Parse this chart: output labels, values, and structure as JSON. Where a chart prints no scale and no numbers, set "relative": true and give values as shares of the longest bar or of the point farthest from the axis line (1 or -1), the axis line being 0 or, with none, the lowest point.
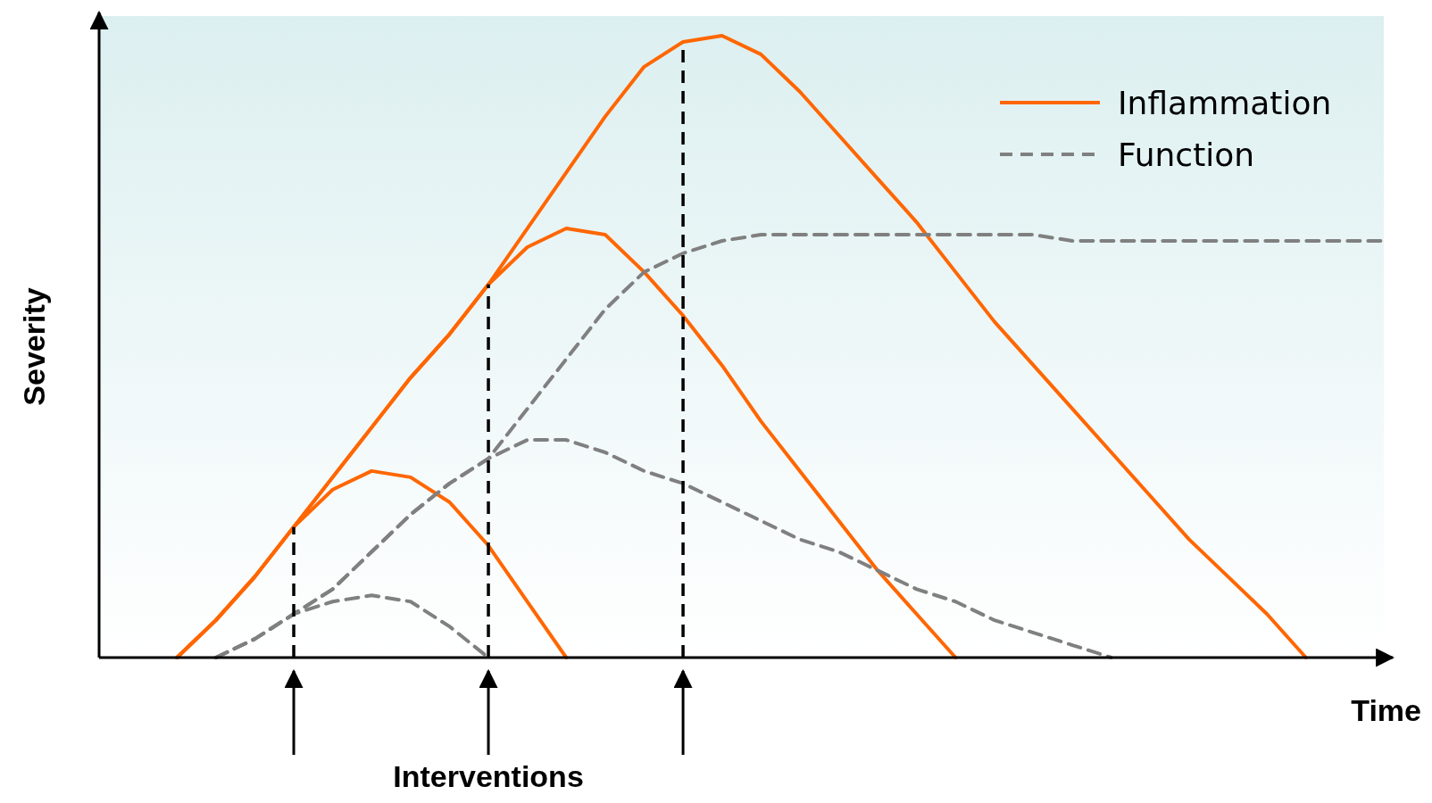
{
  "chart_data": {
    "type": "line",
    "relative": true,
    "xlabel": "Time",
    "ylabel": "Severity",
    "legend": "top right",
    "marker": "none",
    "categories": [
      null,
      null,
      null,
      null,
      null,
      null,
      null,
      null,
      null,
      null,
      null,
      null,
      null,
      null,
      null,
      null,
      null,
      null,
      null,
      null,
      null,
      null,
      null,
      null,
      null,
      null,
      null,
      null,
      null,
      null,
      null,
      null,
      null,
      null
    ],
    "series": [
      {
        "name": "Inflammation",
        "color": "#ff6600",
        "line_style": "solid",
        "values": [
          null,
          null,
          0,
          0.06,
          0.13,
          0.21,
          0.27,
          0.3,
          0.29,
          0.25,
          0.18,
          0.09,
          0,
          null,
          null,
          null,
          null,
          null,
          null,
          null,
          null,
          null,
          null,
          null,
          null,
          null,
          null,
          null,
          null,
          null,
          null,
          null,
          null,
          null
        ]
      },
      {
        "color": "#ff6600",
        "line_style": "solid",
        "values": [
          null,
          null,
          0,
          0.06,
          0.13,
          0.21,
          0.29,
          0.37,
          0.45,
          0.52,
          0.6,
          0.66,
          0.69,
          0.68,
          0.62,
          0.55,
          0.47,
          0.38,
          0.3,
          0.22,
          0.14,
          0.07,
          0,
          null,
          null,
          null,
          null,
          null,
          null,
          null,
          null,
          null,
          null,
          null
        ]
      },
      {
        "color": "#ff6600",
        "line_style": "solid",
        "values": [
          null,
          null,
          0,
          0.06,
          0.13,
          0.21,
          0.29,
          0.37,
          0.45,
          0.52,
          0.6,
          0.69,
          0.78,
          0.87,
          0.95,
          0.99,
          1,
          0.97,
          0.91,
          0.84,
          0.77,
          0.7,
          0.62,
          0.54,
          0.47,
          0.4,
          0.33,
          0.26,
          0.19,
          0.13,
          0.07,
          0,
          null,
          null
        ]
      },
      {
        "name": "Function",
        "color": "#808080",
        "line_style": "dashed",
        "values": [
          null,
          null,
          null,
          0,
          0.03,
          0.07,
          0.09,
          0.1,
          0.09,
          0.05,
          0,
          null,
          null,
          null,
          null,
          null,
          null,
          null,
          null,
          null,
          null,
          null,
          null,
          null,
          null,
          null,
          null,
          null,
          null,
          null,
          null,
          null,
          null,
          null
        ]
      },
      {
        "color": "#808080",
        "line_style": "dashed",
        "values": [
          null,
          null,
          null,
          0,
          0.03,
          0.07,
          0.11,
          0.17,
          0.23,
          0.28,
          0.32,
          0.35,
          0.35,
          0.33,
          0.3,
          0.28,
          0.25,
          0.22,
          0.19,
          0.17,
          0.14,
          0.11,
          0.09,
          0.06,
          0.04,
          0.02,
          0,
          null,
          null,
          null,
          null,
          null,
          null,
          null
        ]
      },
      {
        "color": "#808080",
        "line_style": "dashed",
        "values": [
          null,
          null,
          null,
          0,
          0.03,
          0.07,
          0.11,
          0.17,
          0.23,
          0.28,
          0.32,
          0.4,
          0.48,
          0.56,
          0.62,
          0.65,
          0.67,
          0.68,
          0.68,
          0.68,
          0.68,
          0.68,
          0.68,
          0.68,
          0.68,
          0.67,
          0.67,
          0.67,
          0.67,
          0.67,
          0.67,
          0.67,
          0.67,
          0.67
        ]
      }
    ],
    "annotations": [
      "Interventions"
    ]
  }
}
